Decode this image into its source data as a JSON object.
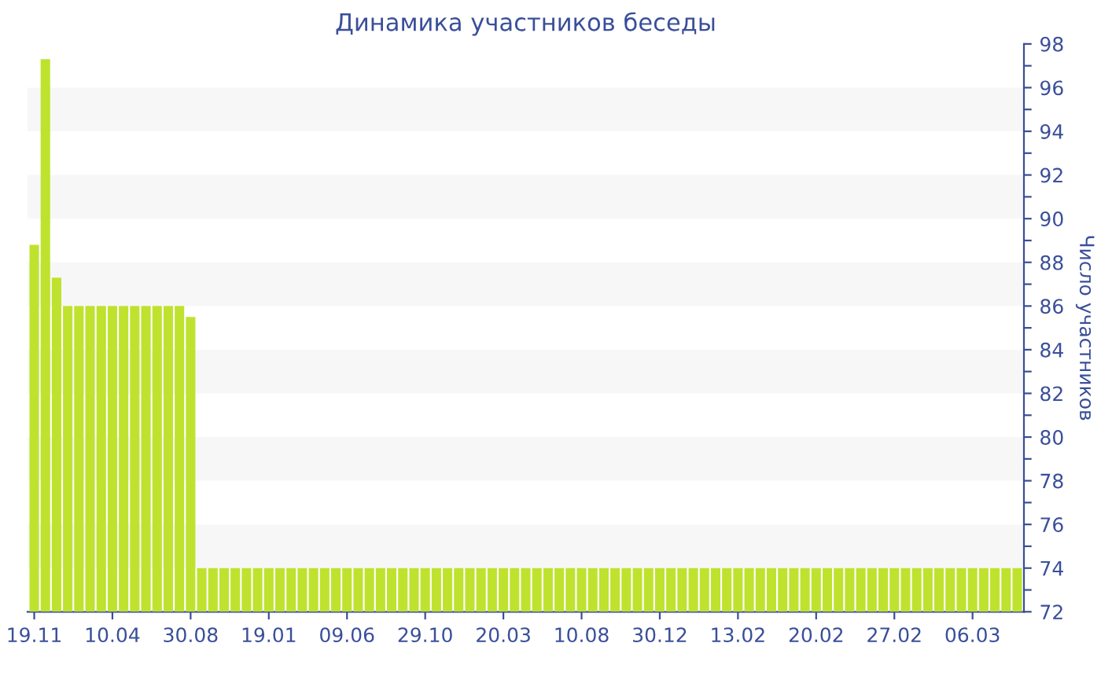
{
  "chart_data": {
    "type": "bar",
    "title": "Динамика участников беседы",
    "ylabel": "Число участников",
    "categories": [
      "19.11",
      null,
      null,
      null,
      null,
      null,
      null,
      "10.04",
      null,
      null,
      null,
      null,
      null,
      null,
      "30.08",
      null,
      null,
      null,
      null,
      null,
      null,
      "19.01",
      null,
      null,
      null,
      null,
      null,
      null,
      "09.06",
      null,
      null,
      null,
      null,
      null,
      null,
      "29.10",
      null,
      null,
      null,
      null,
      null,
      null,
      "20.03",
      null,
      null,
      null,
      null,
      null,
      null,
      "10.08",
      null,
      null,
      null,
      null,
      null,
      null,
      "30.12",
      null,
      null,
      null,
      null,
      null,
      null,
      "13.02",
      null,
      null,
      null,
      null,
      null,
      null,
      "20.02",
      null,
      null,
      null,
      null,
      null,
      null,
      "27.02",
      null,
      null,
      null,
      null,
      null,
      null,
      "06.03",
      null,
      null,
      null,
      null
    ],
    "values": [
      88.8,
      97.3,
      87.3,
      86,
      86,
      86,
      86,
      86,
      86,
      86,
      86,
      86,
      86,
      86,
      85.5,
      74,
      74,
      74,
      74,
      74,
      74,
      74,
      74,
      74,
      74,
      74,
      74,
      74,
      74,
      74,
      74,
      74,
      74,
      74,
      74,
      74,
      74,
      74,
      74,
      74,
      74,
      74,
      74,
      74,
      74,
      74,
      74,
      74,
      74,
      74,
      74,
      74,
      74,
      74,
      74,
      74,
      74,
      74,
      74,
      74,
      74,
      74,
      74,
      74,
      74,
      74,
      74,
      74,
      74,
      74,
      74,
      74,
      74,
      74,
      74,
      74,
      74,
      74,
      74,
      74,
      74,
      74,
      74,
      74,
      74,
      74,
      74,
      74,
      74
    ],
    "color": "#bfe22f",
    "ylim": [
      72,
      98
    ],
    "yticks": [
      72,
      {
        "value": 73,
        "label": null
      },
      74,
      {
        "value": 75,
        "label": null
      },
      76,
      {
        "value": 77,
        "label": null
      },
      78,
      {
        "value": 79,
        "label": null
      },
      80,
      {
        "value": 81,
        "label": null
      },
      82,
      {
        "value": 83,
        "label": null
      },
      84,
      {
        "value": 85,
        "label": null
      },
      86,
      {
        "value": 87,
        "label": null
      },
      88,
      {
        "value": 89,
        "label": null
      },
      90,
      {
        "value": 91,
        "label": null
      },
      92,
      {
        "value": 93,
        "label": null
      },
      94,
      {
        "value": 95,
        "label": null
      },
      96,
      {
        "value": 97,
        "label": null
      },
      98
    ],
    "bands": [
      {
        "axis": "y",
        "from": 74,
        "to": 76,
        "color": "#f7f7f7"
      },
      {
        "axis": "y",
        "from": 78,
        "to": 80,
        "color": "#f7f7f7"
      },
      {
        "axis": "y",
        "from": 82,
        "to": 84,
        "color": "#f7f7f7"
      },
      {
        "axis": "y",
        "from": 86,
        "to": 88,
        "color": "#f7f7f7"
      },
      {
        "axis": "y",
        "from": 90,
        "to": 92,
        "color": "#f7f7f7"
      },
      {
        "axis": "y",
        "from": 94,
        "to": 96,
        "color": "#f7f7f7"
      }
    ],
    "legend": false
  }
}
